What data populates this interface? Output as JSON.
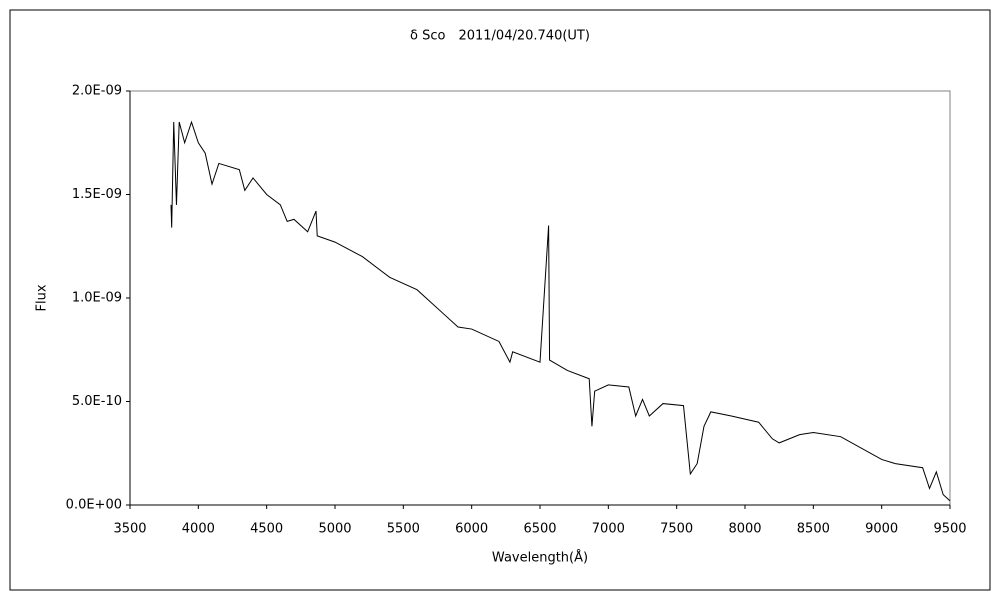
{
  "chart_data": {
    "type": "line",
    "title": "δ Sco　2011/04/20.740(UT)",
    "xlabel": "Wavelength(Å)",
    "ylabel": "Flux",
    "x": [
      3800,
      3805,
      3820,
      3840,
      3860,
      3900,
      3950,
      4000,
      4050,
      4100,
      4150,
      4300,
      4340,
      4400,
      4500,
      4600,
      4650,
      4700,
      4800,
      4861,
      4870,
      5000,
      5200,
      5400,
      5600,
      5800,
      5900,
      6000,
      6200,
      6280,
      6300,
      6500,
      6563,
      6570,
      6700,
      6860,
      6880,
      6900,
      7000,
      7150,
      7200,
      7250,
      7300,
      7400,
      7550,
      7600,
      7650,
      7700,
      7750,
      7900,
      8100,
      8200,
      8250,
      8400,
      8500,
      8700,
      9000,
      9100,
      9300,
      9350,
      9400,
      9450,
      9500
    ],
    "series": [
      {
        "name": "Flux",
        "color": "#000000",
        "values": [
          1.45e-09,
          1.34e-09,
          1.85e-09,
          1.45e-09,
          1.85e-09,
          1.75e-09,
          1.85e-09,
          1.75e-09,
          1.7e-09,
          1.55e-09,
          1.65e-09,
          1.62e-09,
          1.52e-09,
          1.58e-09,
          1.5e-09,
          1.45e-09,
          1.37e-09,
          1.38e-09,
          1.32e-09,
          1.42e-09,
          1.3e-09,
          1.27e-09,
          1.2e-09,
          1.1e-09,
          1.04e-09,
          9.2e-10,
          8.6e-10,
          8.5e-10,
          7.9e-10,
          6.9e-10,
          7.4e-10,
          6.9e-10,
          1.35e-09,
          7e-10,
          6.5e-10,
          6.1e-10,
          3.8e-10,
          5.5e-10,
          5.8e-10,
          5.7e-10,
          4.3e-10,
          5.1e-10,
          4.3e-10,
          4.9e-10,
          4.8e-10,
          1.5e-10,
          2e-10,
          3.8e-10,
          4.5e-10,
          4.3e-10,
          4e-10,
          3.2e-10,
          3e-10,
          3.4e-10,
          3.5e-10,
          3.3e-10,
          2.2e-10,
          2e-10,
          1.8e-10,
          8e-11,
          1.6e-10,
          5e-11,
          2e-11
        ]
      }
    ],
    "xlim": [
      3500,
      9500
    ],
    "xticks": [
      3500,
      4000,
      4500,
      5000,
      5500,
      6000,
      6500,
      7000,
      7500,
      8000,
      8500,
      9000,
      9500
    ],
    "ylim": [
      0,
      2e-09
    ],
    "yticks": [
      {
        "value": 0,
        "label": "0.0E+00"
      },
      {
        "value": 5e-10,
        "label": "5.0E-10"
      },
      {
        "value": 1e-09,
        "label": "1.0E-09"
      },
      {
        "value": 1.5e-09,
        "label": "1.5E-09"
      },
      {
        "value": 2e-09,
        "label": "2.0E-09"
      }
    ],
    "grid": false
  }
}
